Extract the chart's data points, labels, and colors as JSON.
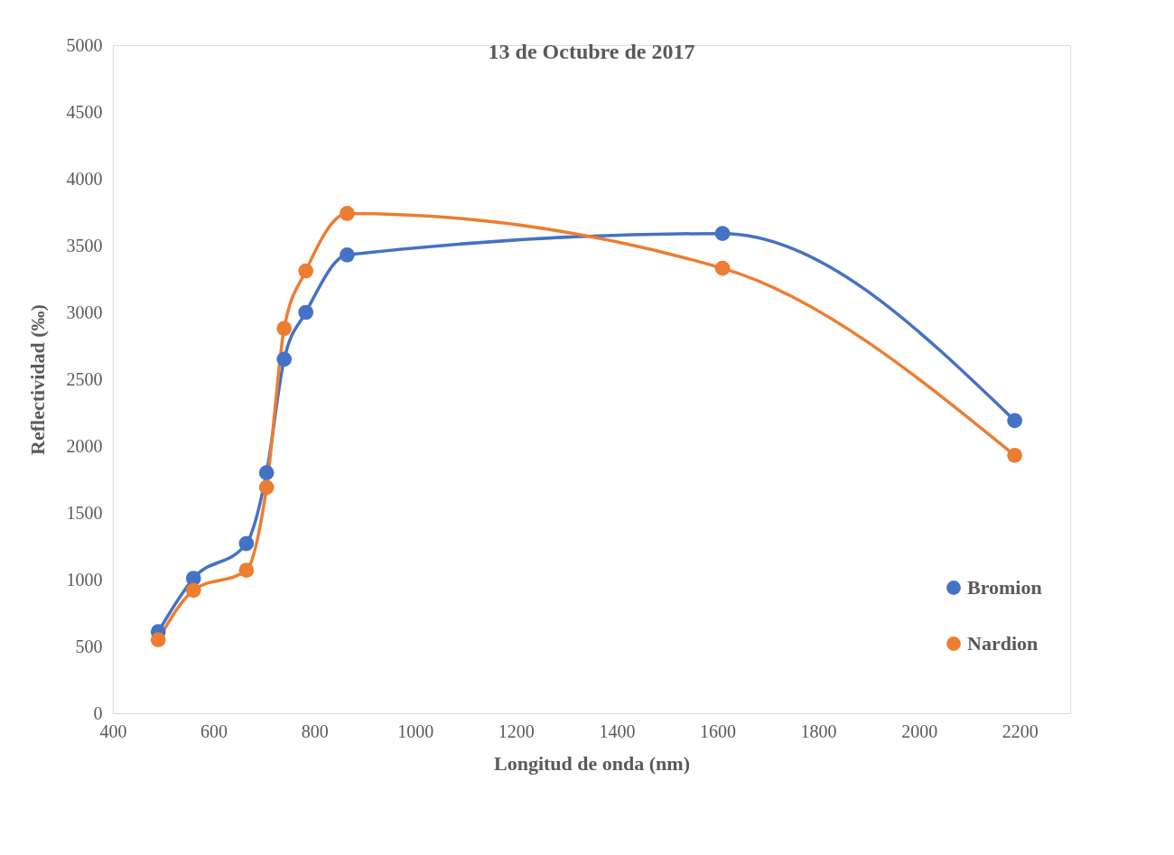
{
  "chart_data": {
    "type": "line",
    "title": "13 de Octubre de 2017",
    "xlabel": "Longitud de onda (nm)",
    "ylabel": "Reflectividad (‰)",
    "x": [
      490,
      560,
      665,
      705,
      740,
      783,
      865,
      1610,
      2190
    ],
    "series": [
      {
        "name": "Bromion",
        "color": "#4472c4",
        "values": [
          610,
          1010,
          1270,
          1800,
          2650,
          3000,
          3430,
          3590,
          2190
        ]
      },
      {
        "name": "Nardion",
        "color": "#ed7d31",
        "values": [
          550,
          920,
          1070,
          1690,
          2880,
          3310,
          3740,
          3330,
          1930
        ]
      }
    ],
    "xlim": [
      400,
      2300
    ],
    "xticks": [
      400,
      600,
      800,
      1000,
      1200,
      1400,
      1600,
      1800,
      2000,
      2200
    ],
    "ylim": [
      0,
      5000
    ],
    "yticks": [
      0,
      500,
      1000,
      1500,
      2000,
      2500,
      3000,
      3500,
      4000,
      4500,
      5000
    ],
    "grid": false,
    "legend": "right",
    "marker": "circle",
    "line_style": "solid"
  }
}
